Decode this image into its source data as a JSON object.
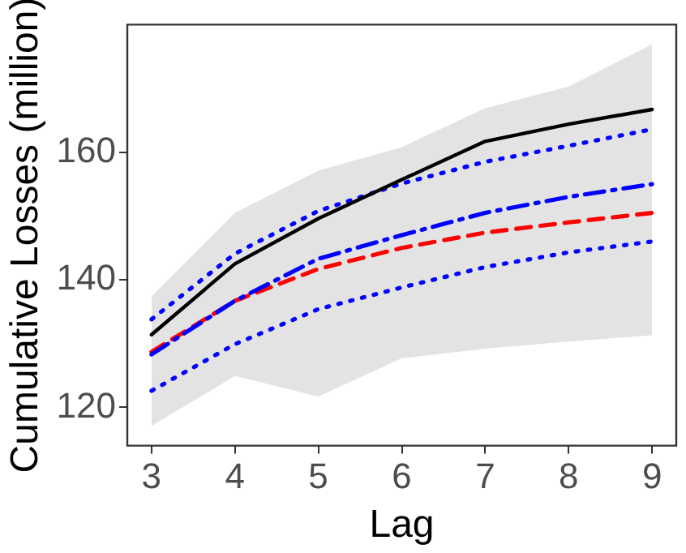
{
  "chart_data": {
    "type": "line",
    "xlabel": "Lag",
    "ylabel": "Cumulative Losses (million)",
    "x": [
      3,
      4,
      5,
      6,
      7,
      8,
      9
    ],
    "xlim": [
      2.71,
      9.29
    ],
    "xticks": [
      3,
      4,
      5,
      6,
      7,
      8,
      9
    ],
    "ylim": [
      114,
      180
    ],
    "yticks": [
      120,
      140,
      160
    ],
    "series": [
      {
        "color": "#000000",
        "line_style": "solid",
        "values": [
          131.4,
          142.5,
          149.6,
          155.7,
          161.7,
          164.4,
          166.7
        ],
        "lower": [
          117.1,
          124.9,
          121.7,
          127.7,
          129.2,
          130.3,
          131.3
        ],
        "upper": [
          137.4,
          150.5,
          157.1,
          160.8,
          166.9,
          170.3,
          176.9
        ]
      },
      {
        "color": "#0000ff",
        "line_style": "dotted",
        "values": [
          133.8,
          144.1,
          150.8,
          155.1,
          158.5,
          161.0,
          163.6
        ]
      },
      {
        "color": "#0000ff",
        "line_style": "dashdot",
        "values": [
          128.3,
          136.7,
          143.3,
          147.0,
          150.5,
          153.0,
          155.0
        ]
      },
      {
        "color": "#ff0000",
        "line_style": "dashed",
        "values": [
          128.7,
          136.7,
          141.7,
          145.0,
          147.4,
          149.0,
          150.5
        ]
      },
      {
        "color": "#0000ff",
        "line_style": "dotted",
        "values": [
          122.6,
          129.9,
          135.4,
          138.8,
          142.0,
          144.3,
          146.0
        ]
      }
    ]
  }
}
